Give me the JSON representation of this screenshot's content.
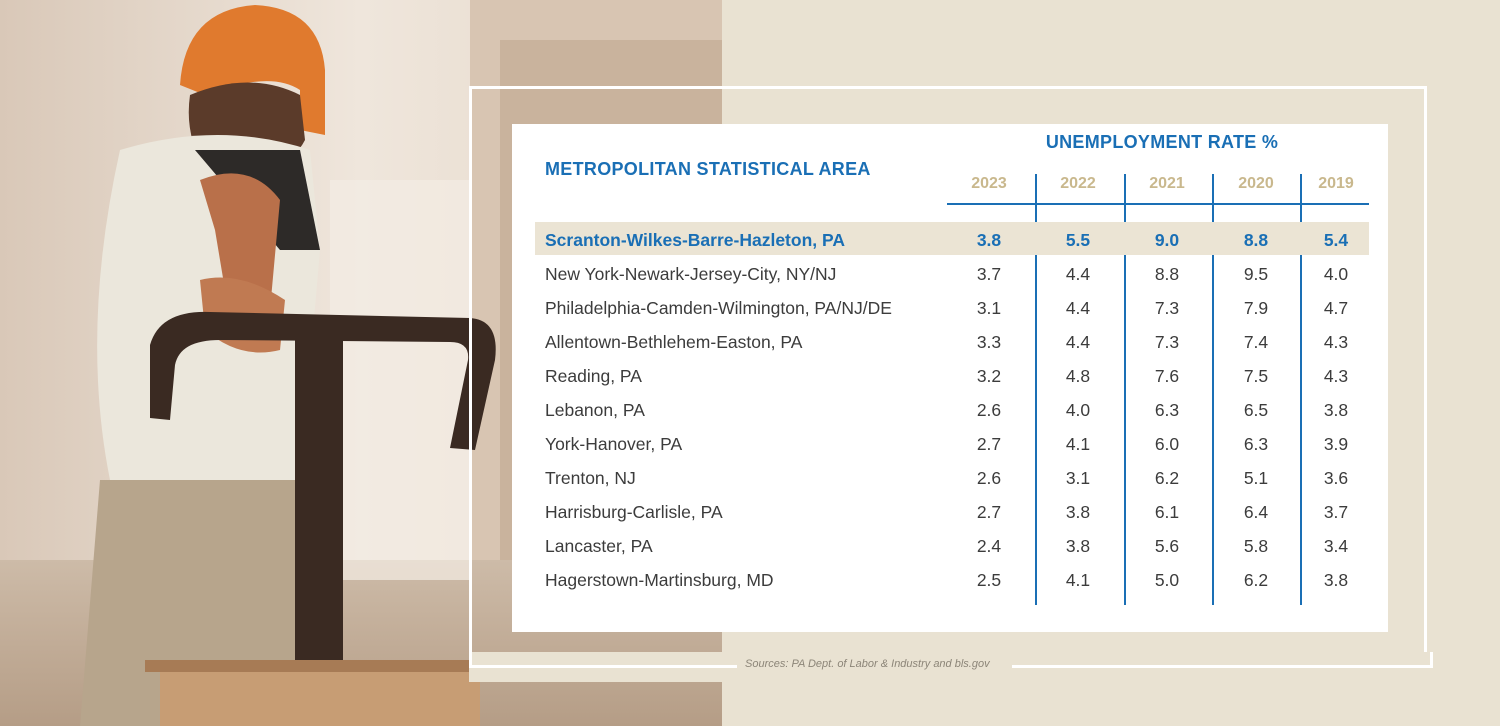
{
  "table": {
    "title_rate": "UNEMPLOYMENT RATE %",
    "title_area": "METROPOLITAN STATISTICAL AREA",
    "years": [
      "2023",
      "2022",
      "2021",
      "2020",
      "2019"
    ],
    "rows": [
      {
        "name": "Scranton-Wilkes-Barre-Hazleton, PA",
        "values": [
          "3.8",
          "5.5",
          "9.0",
          "8.8",
          "5.4"
        ],
        "highlight": true
      },
      {
        "name": "New York-Newark-Jersey-City, NY/NJ",
        "values": [
          "3.7",
          "4.4",
          "8.8",
          "9.5",
          "4.0"
        ]
      },
      {
        "name": "Philadelphia-Camden-Wilmington, PA/NJ/DE",
        "values": [
          "3.1",
          "4.4",
          "7.3",
          "7.9",
          "4.7"
        ]
      },
      {
        "name": "Allentown-Bethlehem-Easton, PA",
        "values": [
          "3.3",
          "4.4",
          "7.3",
          "7.4",
          "4.3"
        ]
      },
      {
        "name": "Reading, PA",
        "values": [
          "3.2",
          "4.8",
          "7.6",
          "7.5",
          "4.3"
        ]
      },
      {
        "name": "Lebanon, PA",
        "values": [
          "2.6",
          "4.0",
          "6.3",
          "6.5",
          "3.8"
        ]
      },
      {
        "name": "York-Hanover, PA",
        "values": [
          "2.7",
          "4.1",
          "6.0",
          "6.3",
          "3.9"
        ]
      },
      {
        "name": "Trenton, NJ",
        "values": [
          "2.6",
          "3.1",
          "6.2",
          "5.1",
          "3.6"
        ]
      },
      {
        "name": "Harrisburg-Carlisle, PA",
        "values": [
          "2.7",
          "3.8",
          "6.1",
          "6.4",
          "3.7"
        ]
      },
      {
        "name": "Lancaster, PA",
        "values": [
          "2.4",
          "3.8",
          "5.6",
          "5.8",
          "3.4"
        ]
      },
      {
        "name": "Hagerstown-Martinsburg, MD",
        "values": [
          "2.5",
          "4.1",
          "5.0",
          "6.2",
          "3.8"
        ]
      }
    ]
  },
  "source": "Sources: PA Dept. of Labor & Industry and bls.gov",
  "colors": {
    "accent": "#1a6fb5",
    "gold": "#c9b88d",
    "background": "#e9e2d2",
    "highlight": "#ebe4d4"
  },
  "photo": {
    "icon": "warehouse-worker-pallet-jack-photo"
  }
}
